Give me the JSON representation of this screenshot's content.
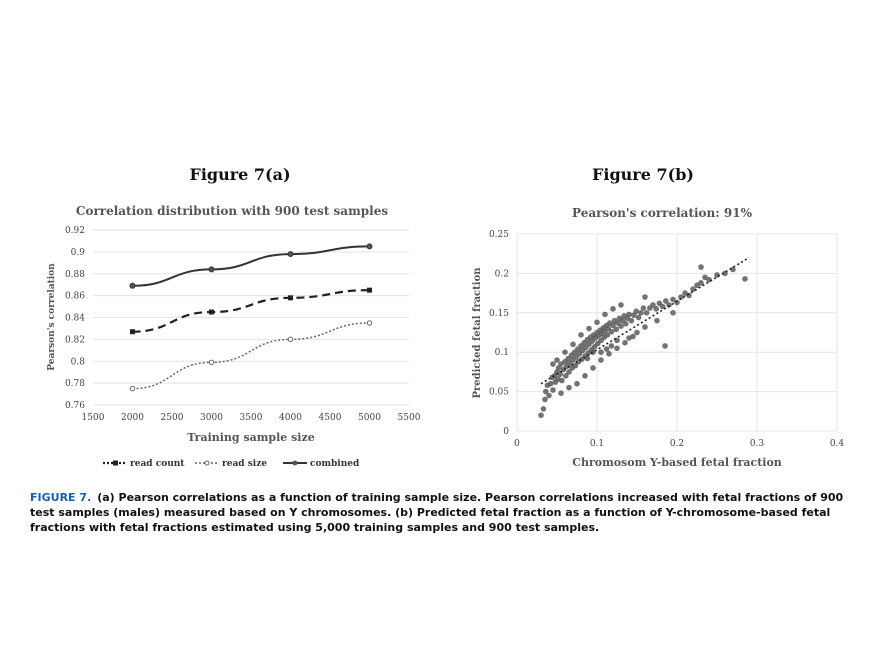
{
  "figure_a_title": "Figure 7(a)",
  "figure_b_title": "Figure 7(b)",
  "caption": {
    "label": "FIGURE 7.",
    "text": "(a) Pearson correlations as a function of training sample size. Pearson correlations increased with fetal fractions of 900 test samples (males) measured based on Y chromosomes. (b) Predicted fetal fraction as a function of Y-chromosome-based fetal fractions with fetal fractions estimated using 5,000 training samples and 900 test samples."
  },
  "chart_data": [
    {
      "type": "line",
      "title": "Correlation distribution with 900 test samples",
      "xlabel": "Training sample size",
      "ylabel": "Pearson's correlation",
      "xlim": [
        1500,
        5500
      ],
      "ylim": [
        0.76,
        0.92
      ],
      "xticks": [
        "1500",
        "2000",
        "2500",
        "3000",
        "3500",
        "4000",
        "4500",
        "5000",
        "5500"
      ],
      "yticks": [
        "0.76",
        "0.78",
        "0.8",
        "0.82",
        "0.84",
        "0.86",
        "0.88",
        "0.9",
        "0.92"
      ],
      "x": [
        2000,
        3000,
        4000,
        5000
      ],
      "series": [
        {
          "name": "read count",
          "values": [
            0.827,
            0.845,
            0.858,
            0.865
          ],
          "style": "dashed"
        },
        {
          "name": "read size",
          "values": [
            0.775,
            0.799,
            0.82,
            0.835
          ],
          "style": "dotted"
        },
        {
          "name": "combined",
          "values": [
            0.869,
            0.884,
            0.898,
            0.905
          ],
          "style": "solid"
        }
      ],
      "legend": "bottom",
      "grid": true
    },
    {
      "type": "scatter",
      "title": "Pearson's correlation: 91%",
      "xlabel": "Chromosom Y-based fetal fraction",
      "ylabel": "Predicted fetal fraction",
      "xlim": [
        0,
        0.4
      ],
      "ylim": [
        0,
        0.25
      ],
      "xticks": [
        "0",
        "0.1",
        "0.2",
        "0.3",
        "0.4"
      ],
      "yticks": [
        "0",
        "0.05",
        "0.1",
        "0.15",
        "0.2",
        "0.25"
      ],
      "points": [
        [
          0.03,
          0.02
        ],
        [
          0.033,
          0.028
        ],
        [
          0.035,
          0.04
        ],
        [
          0.036,
          0.05
        ],
        [
          0.038,
          0.058
        ],
        [
          0.04,
          0.045
        ],
        [
          0.042,
          0.06
        ],
        [
          0.044,
          0.068
        ],
        [
          0.045,
          0.052
        ],
        [
          0.047,
          0.07
        ],
        [
          0.048,
          0.062
        ],
        [
          0.05,
          0.075
        ],
        [
          0.051,
          0.066
        ],
        [
          0.052,
          0.08
        ],
        [
          0.054,
          0.072
        ],
        [
          0.055,
          0.085
        ],
        [
          0.056,
          0.064
        ],
        [
          0.058,
          0.078
        ],
        [
          0.06,
          0.088
        ],
        [
          0.061,
          0.07
        ],
        [
          0.062,
          0.082
        ],
        [
          0.064,
          0.092
        ],
        [
          0.065,
          0.075
        ],
        [
          0.066,
          0.086
        ],
        [
          0.068,
          0.096
        ],
        [
          0.069,
          0.08
        ],
        [
          0.07,
          0.09
        ],
        [
          0.072,
          0.1
        ],
        [
          0.073,
          0.083
        ],
        [
          0.074,
          0.094
        ],
        [
          0.076,
          0.104
        ],
        [
          0.077,
          0.088
        ],
        [
          0.078,
          0.098
        ],
        [
          0.08,
          0.108
        ],
        [
          0.081,
          0.091
        ],
        [
          0.082,
          0.102
        ],
        [
          0.084,
          0.112
        ],
        [
          0.085,
          0.095
        ],
        [
          0.086,
          0.106
        ],
        [
          0.088,
          0.116
        ],
        [
          0.089,
          0.099
        ],
        [
          0.09,
          0.11
        ],
        [
          0.092,
          0.119
        ],
        [
          0.093,
          0.103
        ],
        [
          0.094,
          0.114
        ],
        [
          0.096,
          0.122
        ],
        [
          0.097,
          0.107
        ],
        [
          0.098,
          0.118
        ],
        [
          0.1,
          0.125
        ],
        [
          0.101,
          0.111
        ],
        [
          0.102,
          0.121
        ],
        [
          0.104,
          0.128
        ],
        [
          0.105,
          0.115
        ],
        [
          0.106,
          0.124
        ],
        [
          0.108,
          0.131
        ],
        [
          0.109,
          0.119
        ],
        [
          0.11,
          0.127
        ],
        [
          0.112,
          0.134
        ],
        [
          0.113,
          0.122
        ],
        [
          0.114,
          0.13
        ],
        [
          0.116,
          0.137
        ],
        [
          0.118,
          0.126
        ],
        [
          0.12,
          0.134
        ],
        [
          0.122,
          0.14
        ],
        [
          0.124,
          0.129
        ],
        [
          0.126,
          0.137
        ],
        [
          0.128,
          0.143
        ],
        [
          0.13,
          0.133
        ],
        [
          0.132,
          0.14
        ],
        [
          0.134,
          0.146
        ],
        [
          0.136,
          0.136
        ],
        [
          0.138,
          0.143
        ],
        [
          0.14,
          0.148
        ],
        [
          0.143,
          0.14
        ],
        [
          0.146,
          0.147
        ],
        [
          0.149,
          0.152
        ],
        [
          0.152,
          0.144
        ],
        [
          0.155,
          0.15
        ],
        [
          0.158,
          0.156
        ],
        [
          0.162,
          0.15
        ],
        [
          0.166,
          0.156
        ],
        [
          0.17,
          0.16
        ],
        [
          0.174,
          0.155
        ],
        [
          0.178,
          0.162
        ],
        [
          0.182,
          0.158
        ],
        [
          0.186,
          0.165
        ],
        [
          0.19,
          0.16
        ],
        [
          0.195,
          0.167
        ],
        [
          0.2,
          0.163
        ],
        [
          0.205,
          0.17
        ],
        [
          0.21,
          0.175
        ],
        [
          0.215,
          0.172
        ],
        [
          0.22,
          0.18
        ],
        [
          0.225,
          0.185
        ],
        [
          0.23,
          0.188
        ],
        [
          0.235,
          0.195
        ],
        [
          0.24,
          0.192
        ],
        [
          0.25,
          0.198
        ],
        [
          0.26,
          0.2
        ],
        [
          0.27,
          0.205
        ],
        [
          0.285,
          0.193
        ],
        [
          0.23,
          0.208
        ],
        [
          0.14,
          0.118
        ],
        [
          0.15,
          0.125
        ],
        [
          0.16,
          0.132
        ],
        [
          0.175,
          0.14
        ],
        [
          0.185,
          0.108
        ],
        [
          0.195,
          0.15
        ],
        [
          0.08,
          0.122
        ],
        [
          0.09,
          0.13
        ],
        [
          0.1,
          0.138
        ],
        [
          0.07,
          0.11
        ],
        [
          0.06,
          0.1
        ],
        [
          0.11,
          0.148
        ],
        [
          0.12,
          0.155
        ],
        [
          0.05,
          0.09
        ],
        [
          0.045,
          0.085
        ],
        [
          0.13,
          0.16
        ],
        [
          0.16,
          0.17
        ],
        [
          0.075,
          0.06
        ],
        [
          0.085,
          0.07
        ],
        [
          0.095,
          0.08
        ],
        [
          0.105,
          0.09
        ],
        [
          0.115,
          0.098
        ],
        [
          0.125,
          0.105
        ],
        [
          0.135,
          0.112
        ],
        [
          0.145,
          0.12
        ],
        [
          0.065,
          0.055
        ],
        [
          0.055,
          0.048
        ],
        [
          0.125,
          0.115
        ],
        [
          0.118,
          0.108
        ],
        [
          0.095,
          0.1
        ],
        [
          0.088,
          0.092
        ],
        [
          0.105,
          0.1
        ],
        [
          0.112,
          0.104
        ]
      ],
      "trendline": {
        "style": "dotted",
        "from": [
          0.03,
          0.06
        ],
        "to": [
          0.29,
          0.22
        ]
      },
      "grid": true
    }
  ]
}
